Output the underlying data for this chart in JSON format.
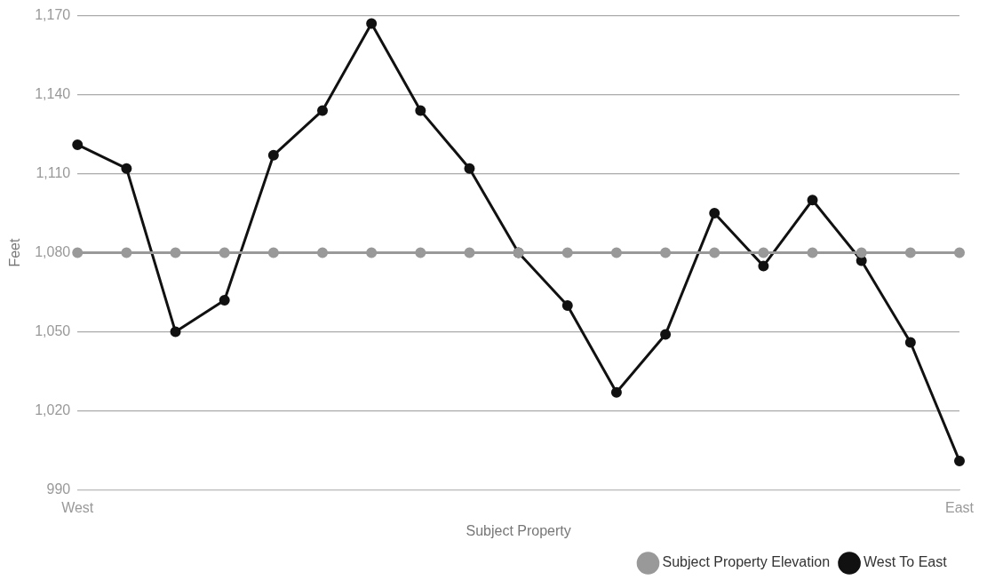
{
  "chart_data": {
    "type": "line",
    "xlabel": "Subject Property",
    "ylabel": "Feet",
    "categories": [
      "West",
      null,
      null,
      null,
      null,
      null,
      null,
      null,
      null,
      null,
      null,
      null,
      null,
      null,
      null,
      null,
      null,
      null,
      "East"
    ],
    "series": [
      {
        "name": "Subject Property Elevation",
        "color": "#999999",
        "values": [
          1080,
          1080,
          1080,
          1080,
          1080,
          1080,
          1080,
          1080,
          1080,
          1080,
          1080,
          1080,
          1080,
          1080,
          1080,
          1080,
          1080,
          1080,
          1080
        ]
      },
      {
        "name": "West To East",
        "color": "#111111",
        "values": [
          1121,
          1112,
          1050,
          1062,
          1117,
          1134,
          1167,
          1134,
          1112,
          1080,
          1060,
          1027,
          1049,
          1095,
          1075,
          1100,
          1077,
          1046,
          1001
        ]
      }
    ],
    "ylim": [
      990,
      1170
    ],
    "yticks": [
      {
        "value": 990,
        "label": "990"
      },
      {
        "value": 1020,
        "label": "1,020"
      },
      {
        "value": 1050,
        "label": "1,050"
      },
      {
        "value": 1080,
        "label": "1,080"
      },
      {
        "value": 1110,
        "label": "1,110"
      },
      {
        "value": 1140,
        "label": "1,140"
      },
      {
        "value": 1170,
        "label": "1,170"
      }
    ],
    "grid": "y",
    "legend": "bottom right",
    "marker": "circle",
    "line_style": "solid"
  }
}
